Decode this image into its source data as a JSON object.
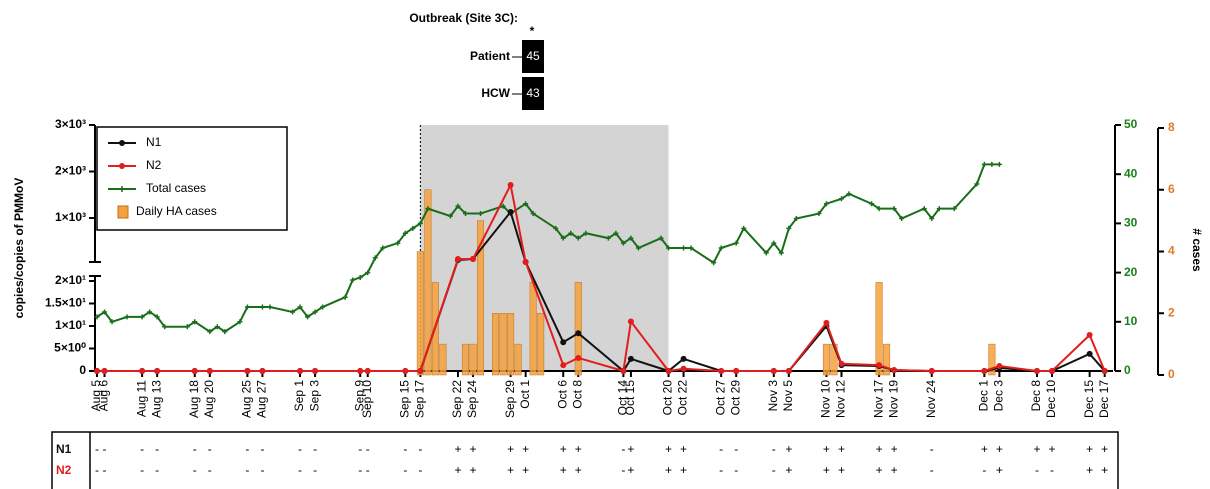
{
  "header": {
    "title": "Outbreak (Site 3C):",
    "marker": "*",
    "rows": [
      {
        "label": "Patient",
        "value": 45
      },
      {
        "label": "HCW",
        "value": 43
      }
    ]
  },
  "chart_data": {
    "type": "line",
    "y_label": "copies/copies of PMMoV",
    "y2_label": "# cases",
    "x": [
      "Aug 5",
      "Aug 6",
      "Aug 11",
      "Aug 13",
      "Aug 18",
      "Aug 20",
      "Aug 25",
      "Aug 27",
      "Sep 1",
      "Sep 3",
      "Sep 9",
      "Sep 10",
      "Sep 15",
      "Sep 17",
      "Sep 22",
      "Sep 24",
      "Sep 29",
      "Oct 1",
      "Oct 6",
      "Oct 8",
      "Oct 14",
      "Oct 15",
      "Oct 20",
      "Oct 22",
      "Oct 27",
      "Oct 29",
      "Nov 3",
      "Nov 5",
      "Nov 10",
      "Nov 12",
      "Nov 17",
      "Nov 19",
      "Nov 24",
      "Dec 1",
      "Dec 3",
      "Dec 8",
      "Dec 10",
      "Dec 15",
      "Dec 17"
    ],
    "ylim": [
      0,
      3000
    ],
    "ybreak": [
      20,
      1000
    ],
    "yticks": [
      {
        "value": 0,
        "label": "0"
      },
      {
        "value": 5,
        "label": "5×10⁰"
      },
      {
        "value": 10,
        "label": "1×10¹"
      },
      {
        "value": 15,
        "label": "1.5×10¹"
      },
      {
        "value": 20,
        "label": "2×10¹"
      },
      {
        "value": 1000,
        "label": "1×10³"
      },
      {
        "value": 2000,
        "label": "2×10³"
      },
      {
        "value": 3000,
        "label": "3×10³"
      }
    ],
    "y2lim": [
      0,
      50
    ],
    "y2ticks": [
      0,
      10,
      20,
      30,
      40,
      50
    ],
    "y2color": "#1a801a",
    "y3lim": [
      0,
      8
    ],
    "y3ticks": [
      0,
      2,
      4,
      6,
      8
    ],
    "y3color": "#e07b29",
    "outbreak_period": [
      "Sep 17",
      "Oct 20"
    ],
    "series": [
      {
        "name": "N1",
        "color": "#111111",
        "values": [
          0,
          0,
          0,
          0,
          0,
          0,
          0,
          0,
          0,
          0,
          0,
          0,
          0,
          0,
          347,
          362,
          1130,
          315,
          6.4,
          8.4,
          0,
          2.7,
          0,
          2.7,
          0,
          0,
          0,
          0,
          10,
          1.3,
          1.1,
          0.2,
          0,
          0,
          0.7,
          0,
          0,
          3.8,
          0
        ]
      },
      {
        "name": "N2",
        "color": "#e01e1e",
        "values": [
          0,
          0,
          0,
          0,
          0,
          0,
          0,
          0,
          0,
          0,
          0,
          0,
          0,
          0,
          362,
          362,
          1710,
          315,
          1.3,
          2.9,
          0,
          11,
          0,
          0.5,
          0,
          0,
          0,
          0,
          10.7,
          1.6,
          1.3,
          0.2,
          0,
          0,
          1.1,
          0,
          0,
          8,
          0
        ]
      },
      {
        "name": "Total cases",
        "color": "#1a6e1a",
        "axis": "y2",
        "type": "line",
        "x": [
          "Aug 5",
          "Aug 6",
          "Aug 7",
          "Aug 9",
          "Aug 11",
          "Aug 12",
          "Aug 13",
          "Aug 14",
          "Aug 17",
          "Aug 18",
          "Aug 20",
          "Aug 21",
          "Aug 22",
          "Aug 24",
          "Aug 25",
          "Aug 27",
          "Aug 28",
          "Aug 31",
          "Sep 1",
          "Sep 2",
          "Sep 3",
          "Sep 4",
          "Sep 7",
          "Sep 8",
          "Sep 9",
          "Sep 10",
          "Sep 11",
          "Sep 12",
          "Sep 14",
          "Sep 15",
          "Sep 16",
          "Sep 17",
          "Sep 18",
          "Sep 21",
          "Sep 22",
          "Sep 23",
          "Sep 25",
          "Sep 28",
          "Sep 29",
          "Oct 1",
          "Oct 2",
          "Oct 5",
          "Oct 6",
          "Oct 7",
          "Oct 8",
          "Oct 9",
          "Oct 12",
          "Oct 13",
          "Oct 14",
          "Oct 15",
          "Oct 16",
          "Oct 19",
          "Oct 20",
          "Oct 22",
          "Oct 23",
          "Oct 26",
          "Oct 27",
          "Oct 29",
          "Oct 30",
          "Nov 2",
          "Nov 3",
          "Nov 4",
          "Nov 5",
          "Nov 6",
          "Nov 9",
          "Nov 10",
          "Nov 12",
          "Nov 13",
          "Nov 16",
          "Nov 17",
          "Nov 19",
          "Nov 20",
          "Nov 23",
          "Nov 24",
          "Nov 25",
          "Nov 27",
          "Nov 30",
          "Dec 1",
          "Dec 2",
          "Dec 3"
        ],
        "values": [
          11,
          12,
          10,
          11,
          11,
          12,
          11,
          9,
          9,
          10,
          8,
          9,
          8,
          10,
          13,
          13,
          13,
          12,
          13,
          11,
          12,
          13,
          15,
          18.5,
          19,
          20,
          23,
          25,
          26,
          28,
          29,
          30,
          33,
          31.5,
          33.5,
          32,
          32,
          33.5,
          32,
          34,
          32,
          29,
          27,
          28,
          27,
          28,
          27,
          28,
          26,
          27,
          25,
          27,
          25,
          25,
          25,
          22,
          25,
          26,
          29,
          24,
          26,
          24,
          29,
          31,
          32,
          34,
          35,
          36,
          34,
          33,
          33,
          31,
          33,
          31,
          33,
          33,
          38,
          42,
          42,
          42
        ]
      },
      {
        "name": "Daily HA cases",
        "color": "#f5a03c",
        "axis": "y3",
        "type": "bar",
        "x": [
          "Sep 17",
          "Sep 18",
          "Sep 19",
          "Sep 20",
          "Sep 23",
          "Sep 24",
          "Sep 25",
          "Sep 27",
          "Sep 28",
          "Sep 29",
          "Sep 30",
          "Oct 2",
          "Oct 3",
          "Oct 8",
          "Nov 10",
          "Nov 11",
          "Nov 17",
          "Nov 18",
          "Dec 2"
        ],
        "values": [
          4,
          6,
          3,
          1,
          1,
          1,
          5,
          2,
          2,
          2,
          1,
          3,
          2,
          3,
          1,
          1,
          3,
          1,
          1
        ]
      }
    ]
  },
  "table": {
    "rows": [
      {
        "label": "N1",
        "color": "#111111",
        "values": [
          "-",
          "-",
          "-",
          "-",
          "-",
          "-",
          "-",
          "-",
          "-",
          "-",
          "-",
          "-",
          "-",
          "-",
          "+",
          "+",
          "+",
          "+",
          "+",
          "+",
          "-",
          "+",
          "+",
          "+",
          "-",
          "-",
          "-",
          "+",
          "+",
          "+",
          "+",
          "+",
          "-",
          "+",
          "+",
          "+",
          "+",
          "+",
          "+"
        ]
      },
      {
        "label": "N2",
        "color": "#e01e1e",
        "values": [
          "-",
          "-",
          "-",
          "-",
          "-",
          "-",
          "-",
          "-",
          "-",
          "-",
          "-",
          "-",
          "-",
          "-",
          "+",
          "+",
          "+",
          "+",
          "+",
          "+",
          "-",
          "+",
          "+",
          "+",
          "-",
          "-",
          "-",
          "+",
          "+",
          "+",
          "+",
          "+",
          "-",
          "-",
          "+",
          "-",
          "-",
          "+",
          "+"
        ]
      }
    ]
  }
}
